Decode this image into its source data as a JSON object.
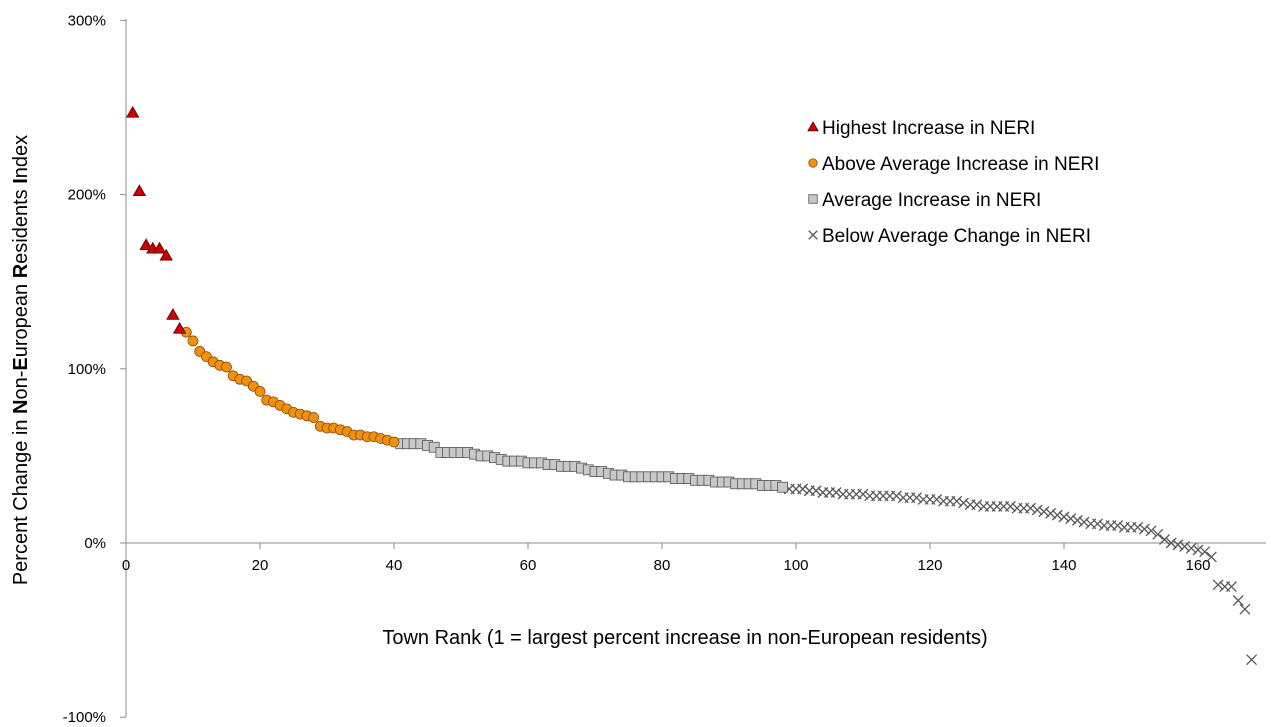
{
  "chart_data": {
    "type": "scatter",
    "title": "",
    "xlabel": "Town Rank (1 = largest percent increase in non-European residents)",
    "ylabel_parts": [
      {
        "text": "Percent Change in ",
        "bold": false
      },
      {
        "text": "N",
        "bold": true
      },
      {
        "text": "on-",
        "bold": false
      },
      {
        "text": "E",
        "bold": true
      },
      {
        "text": "uropean ",
        "bold": false
      },
      {
        "text": "R",
        "bold": true
      },
      {
        "text": "esidents ",
        "bold": false
      },
      {
        "text": "I",
        "bold": true
      },
      {
        "text": "ndex",
        "bold": false
      }
    ],
    "xlim": [
      0,
      170
    ],
    "ylim": [
      -100,
      300
    ],
    "x_ticks": [
      0,
      20,
      40,
      60,
      80,
      100,
      120,
      140,
      160
    ],
    "y_ticks": [
      -100,
      0,
      100,
      200,
      300
    ],
    "y_tick_labels": [
      "-100%",
      "0%",
      "100%",
      "200%",
      "300%"
    ],
    "grid": false,
    "legend_position": "top-right",
    "series": [
      {
        "name": "Highest Increase in NERI",
        "marker": "triangle",
        "color": "#cc0000",
        "points": [
          [
            1,
            247
          ],
          [
            2,
            202
          ],
          [
            3,
            171
          ],
          [
            4,
            169
          ],
          [
            5,
            169
          ],
          [
            6,
            165
          ],
          [
            7,
            131
          ],
          [
            8,
            123
          ]
        ]
      },
      {
        "name": "Above Average Increase in NERI",
        "marker": "circle",
        "color": "#f0900f",
        "points": [
          [
            9,
            121
          ],
          [
            10,
            116
          ],
          [
            11,
            110
          ],
          [
            12,
            107
          ],
          [
            13,
            104
          ],
          [
            14,
            102
          ],
          [
            15,
            101
          ],
          [
            16,
            96
          ],
          [
            17,
            94
          ],
          [
            18,
            93
          ],
          [
            19,
            90
          ],
          [
            20,
            87
          ],
          [
            21,
            82
          ],
          [
            22,
            81
          ],
          [
            23,
            79
          ],
          [
            24,
            77
          ],
          [
            25,
            75
          ],
          [
            26,
            74
          ],
          [
            27,
            73
          ],
          [
            28,
            72
          ],
          [
            29,
            67
          ],
          [
            30,
            66
          ],
          [
            31,
            66
          ],
          [
            32,
            65
          ],
          [
            33,
            64
          ],
          [
            34,
            62
          ],
          [
            35,
            62
          ],
          [
            36,
            61
          ],
          [
            37,
            61
          ],
          [
            38,
            60
          ],
          [
            39,
            59
          ],
          [
            40,
            58
          ]
        ]
      },
      {
        "name": "Average Increase in NERI",
        "marker": "square",
        "color": "#c8c8c8",
        "points": [
          [
            41,
            57
          ],
          [
            42,
            57
          ],
          [
            43,
            57
          ],
          [
            44,
            57
          ],
          [
            45,
            56
          ],
          [
            46,
            55
          ],
          [
            47,
            52
          ],
          [
            48,
            52
          ],
          [
            49,
            52
          ],
          [
            50,
            52
          ],
          [
            51,
            52
          ],
          [
            52,
            51
          ],
          [
            53,
            50
          ],
          [
            54,
            50
          ],
          [
            55,
            49
          ],
          [
            56,
            48
          ],
          [
            57,
            47
          ],
          [
            58,
            47
          ],
          [
            59,
            47
          ],
          [
            60,
            46
          ],
          [
            61,
            46
          ],
          [
            62,
            46
          ],
          [
            63,
            45
          ],
          [
            64,
            45
          ],
          [
            65,
            44
          ],
          [
            66,
            44
          ],
          [
            67,
            44
          ],
          [
            68,
            43
          ],
          [
            69,
            42
          ],
          [
            70,
            41
          ],
          [
            71,
            41
          ],
          [
            72,
            40
          ],
          [
            73,
            39
          ],
          [
            74,
            39
          ],
          [
            75,
            38
          ],
          [
            76,
            38
          ],
          [
            77,
            38
          ],
          [
            78,
            38
          ],
          [
            79,
            38
          ],
          [
            80,
            38
          ],
          [
            81,
            38
          ],
          [
            82,
            37
          ],
          [
            83,
            37
          ],
          [
            84,
            37
          ],
          [
            85,
            36
          ],
          [
            86,
            36
          ],
          [
            87,
            36
          ],
          [
            88,
            35
          ],
          [
            89,
            35
          ],
          [
            90,
            35
          ],
          [
            91,
            34
          ],
          [
            92,
            34
          ],
          [
            93,
            34
          ],
          [
            94,
            34
          ],
          [
            95,
            33
          ],
          [
            96,
            33
          ],
          [
            97,
            33
          ],
          [
            98,
            32
          ]
        ]
      },
      {
        "name": "Below Average Change in NERI",
        "marker": "x",
        "color": "#595959",
        "points": [
          [
            99,
            31
          ],
          [
            100,
            31
          ],
          [
            101,
            31
          ],
          [
            102,
            30
          ],
          [
            103,
            30
          ],
          [
            104,
            29
          ],
          [
            105,
            29
          ],
          [
            106,
            29
          ],
          [
            107,
            28
          ],
          [
            108,
            28
          ],
          [
            109,
            28
          ],
          [
            110,
            28
          ],
          [
            111,
            27
          ],
          [
            112,
            27
          ],
          [
            113,
            27
          ],
          [
            114,
            27
          ],
          [
            115,
            27
          ],
          [
            116,
            26
          ],
          [
            117,
            26
          ],
          [
            118,
            26
          ],
          [
            119,
            25
          ],
          [
            120,
            25
          ],
          [
            121,
            25
          ],
          [
            122,
            24
          ],
          [
            123,
            24
          ],
          [
            124,
            24
          ],
          [
            125,
            23
          ],
          [
            126,
            22
          ],
          [
            127,
            22
          ],
          [
            128,
            21
          ],
          [
            129,
            21
          ],
          [
            130,
            21
          ],
          [
            131,
            21
          ],
          [
            132,
            21
          ],
          [
            133,
            20
          ],
          [
            134,
            20
          ],
          [
            135,
            20
          ],
          [
            136,
            19
          ],
          [
            137,
            18
          ],
          [
            138,
            17
          ],
          [
            139,
            16
          ],
          [
            140,
            15
          ],
          [
            141,
            14
          ],
          [
            142,
            13
          ],
          [
            143,
            12
          ],
          [
            144,
            11
          ],
          [
            145,
            11
          ],
          [
            146,
            10
          ],
          [
            147,
            10
          ],
          [
            148,
            10
          ],
          [
            149,
            9
          ],
          [
            150,
            9
          ],
          [
            151,
            9
          ],
          [
            152,
            8
          ],
          [
            153,
            7
          ],
          [
            154,
            5
          ],
          [
            155,
            2
          ],
          [
            156,
            0
          ],
          [
            157,
            -1
          ],
          [
            158,
            -2
          ],
          [
            159,
            -3
          ],
          [
            160,
            -4
          ],
          [
            161,
            -5
          ],
          [
            162,
            -8
          ],
          [
            163,
            -24
          ],
          [
            164,
            -25
          ],
          [
            165,
            -25
          ],
          [
            166,
            -33
          ],
          [
            167,
            -38
          ],
          [
            168,
            -67
          ]
        ]
      }
    ]
  }
}
